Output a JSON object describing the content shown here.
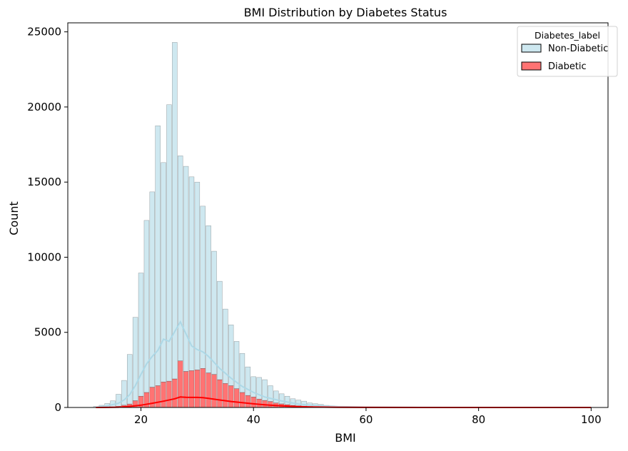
{
  "chart_data": {
    "type": "histogram",
    "title": "BMI Distribution by Diabetes Status",
    "xlabel": "BMI",
    "ylabel": "Count",
    "xlim": [
      7,
      103
    ],
    "ylim": [
      0,
      25600
    ],
    "x_ticks": [
      20,
      40,
      60,
      80,
      100
    ],
    "y_ticks": [
      0,
      5000,
      10000,
      15000,
      20000,
      25000
    ],
    "grid": false,
    "legend": {
      "title": "Diabetes_label",
      "placement": "top-right",
      "entries": [
        {
          "label": "Non-Diabetic",
          "color": "#add8e6"
        },
        {
          "label": "Diabetic",
          "color": "#ff0000"
        }
      ]
    },
    "stacked": true,
    "bin_width": 0.88,
    "bar_x": [
      12,
      13,
      14,
      15,
      16,
      17,
      18,
      19,
      20,
      21,
      22,
      23,
      24,
      25,
      26,
      27,
      28,
      29,
      30,
      31,
      32,
      33,
      34,
      35,
      36,
      37,
      38,
      39,
      40,
      41,
      42,
      43,
      44,
      45,
      46,
      47,
      48,
      49,
      50,
      51,
      52,
      53,
      54,
      55,
      56,
      57,
      58,
      59,
      60,
      61,
      62,
      63,
      64,
      65,
      66,
      67,
      68,
      69,
      70,
      71,
      72,
      73,
      74,
      75,
      76,
      77,
      78,
      79,
      80,
      81,
      82,
      83,
      84,
      85,
      86,
      87,
      88,
      89,
      90,
      91,
      92,
      93,
      94,
      95,
      96,
      97,
      98,
      99
    ],
    "series": [
      {
        "name": "Diabetic",
        "color": "#ff0000",
        "values": [
          0,
          5,
          15,
          40,
          80,
          150,
          230,
          450,
          750,
          1000,
          1350,
          1450,
          1700,
          1750,
          1900,
          3100,
          2400,
          2450,
          2500,
          2600,
          2300,
          2200,
          1850,
          1600,
          1450,
          1250,
          1000,
          800,
          700,
          560,
          470,
          400,
          300,
          240,
          190,
          140,
          110,
          90,
          70,
          55,
          40,
          30,
          25,
          18,
          12,
          10,
          8,
          6,
          5,
          4,
          3,
          3,
          2,
          2,
          2,
          1,
          1,
          1,
          1,
          1,
          1,
          1,
          1,
          1,
          1,
          1,
          1,
          1,
          1,
          1,
          1,
          1,
          1,
          1,
          1,
          1,
          1,
          1,
          1,
          1,
          1,
          1,
          1,
          1,
          1,
          1,
          1,
          1
        ]
      },
      {
        "name": "Non-Diabetic",
        "color": "#add8e6",
        "values": [
          60,
          140,
          250,
          400,
          800,
          1650,
          3300,
          5550,
          8200,
          11450,
          13000,
          17300,
          14600,
          18400,
          22400,
          13650,
          13650,
          12900,
          12500,
          10800,
          9800,
          8200,
          6550,
          4950,
          4050,
          3150,
          2600,
          1900,
          1350,
          1440,
          1380,
          1050,
          800,
          670,
          560,
          440,
          380,
          330,
          230,
          195,
          160,
          110,
          85,
          62,
          38,
          30,
          22,
          14,
          10,
          8,
          6,
          5,
          4,
          4,
          3,
          3,
          3,
          2,
          2,
          2,
          2,
          2,
          2,
          2,
          2,
          2,
          2,
          1,
          1,
          1,
          1,
          1,
          1,
          1,
          1,
          1,
          1,
          1,
          1,
          1,
          1,
          1,
          1,
          1,
          1,
          1,
          1,
          1
        ]
      }
    ],
    "kde": [
      {
        "name": "Non-Diabetic",
        "color": "#add8e6",
        "x": [
          12,
          14,
          16,
          17,
          18,
          19,
          20,
          21,
          22,
          23,
          24,
          25,
          26,
          27,
          28,
          29,
          30,
          31,
          32,
          34,
          36,
          38,
          40,
          42,
          45,
          48,
          50,
          55,
          60,
          70,
          80,
          90,
          100
        ],
        "y": [
          20,
          100,
          280,
          500,
          850,
          1450,
          2200,
          2900,
          3400,
          3800,
          4550,
          4400,
          5050,
          5700,
          4900,
          4100,
          3850,
          3700,
          3400,
          2600,
          1950,
          1400,
          1000,
          700,
          430,
          230,
          150,
          55,
          20,
          6,
          2,
          1,
          0
        ]
      },
      {
        "name": "Diabetic",
        "color": "#ff0000",
        "x": [
          12,
          14,
          16,
          18,
          20,
          22,
          24,
          26,
          27,
          28,
          29,
          30,
          31,
          32,
          34,
          36,
          38,
          40,
          42,
          44,
          46,
          48,
          50,
          55,
          60,
          70,
          80,
          90,
          100
        ],
        "y": [
          0,
          5,
          20,
          70,
          150,
          280,
          420,
          580,
          700,
          680,
          670,
          670,
          650,
          610,
          500,
          400,
          320,
          240,
          180,
          130,
          90,
          60,
          40,
          15,
          5,
          2,
          1,
          0,
          0
        ]
      }
    ]
  }
}
